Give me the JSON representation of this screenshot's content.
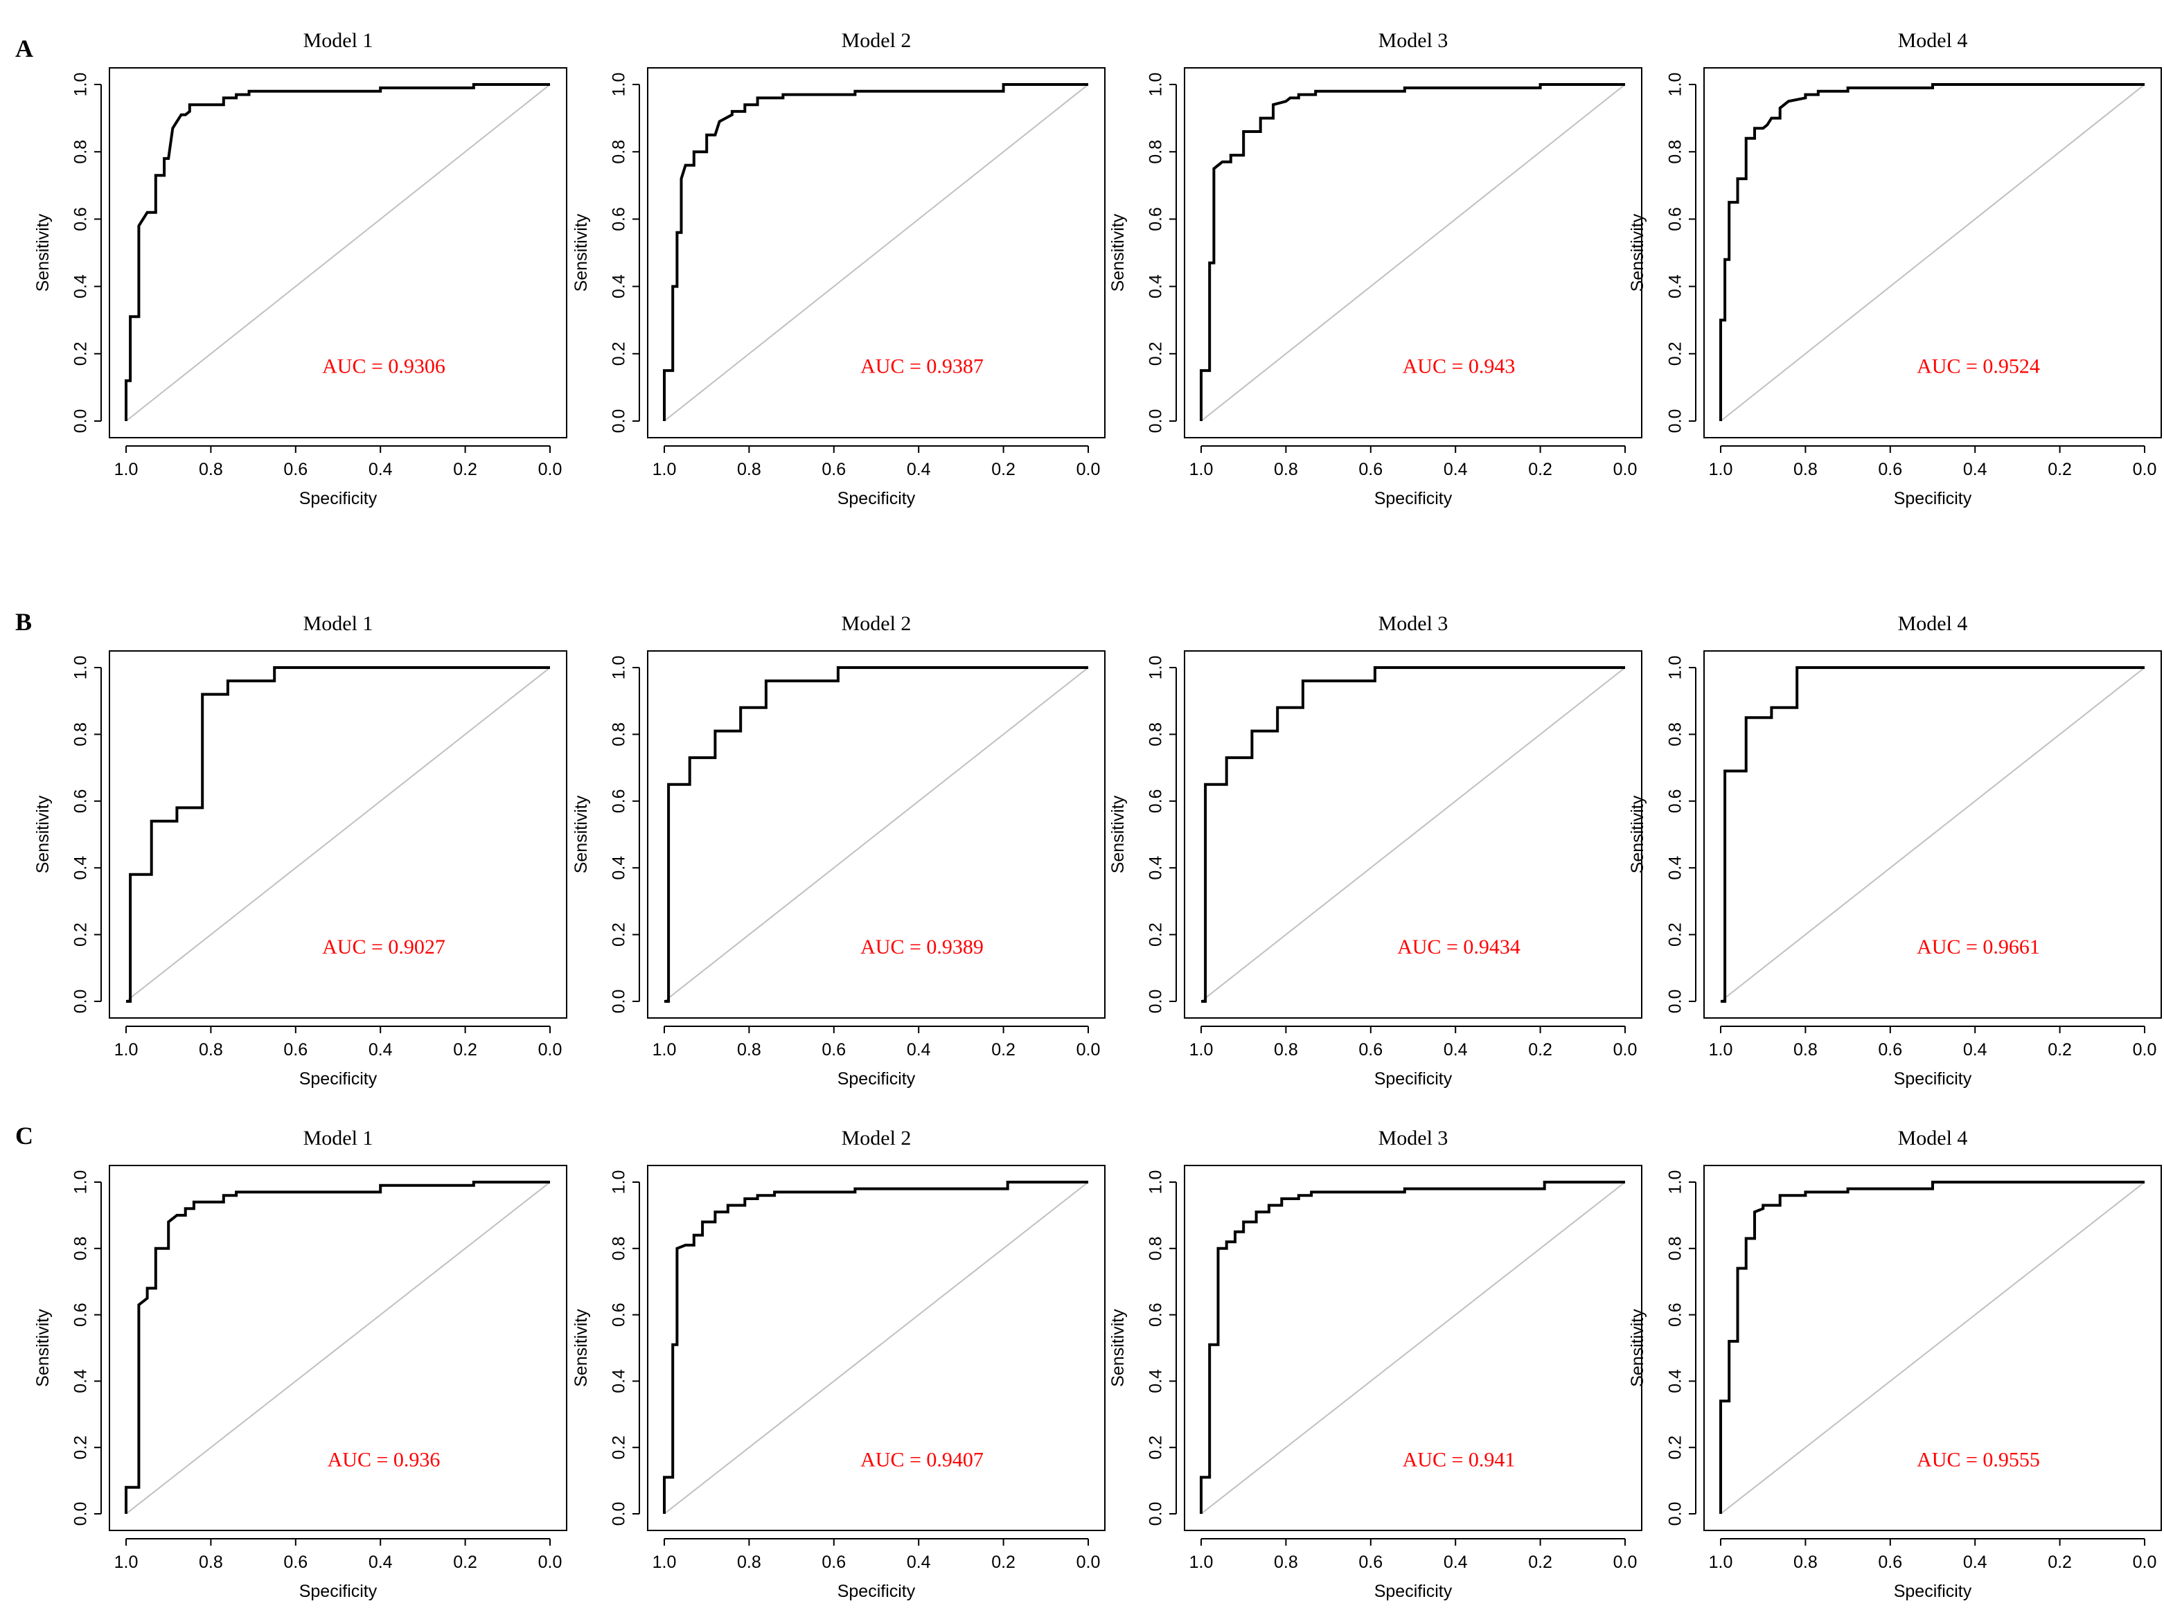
{
  "figure": {
    "row_labels": [
      "A",
      "B",
      "C"
    ]
  },
  "chart_data": [
    {
      "type": "line",
      "row": "A",
      "title": "Model 1",
      "xlabel": "Specificity",
      "ylabel": "Sensitivity",
      "annotation": "AUC = 0.9306",
      "auc_color": "#ff0000",
      "x_reversed": true,
      "xlim": [
        1.0,
        0.0
      ],
      "ylim": [
        0.0,
        1.0
      ],
      "xticks": [
        "1.0",
        "0.8",
        "0.6",
        "0.4",
        "0.2",
        "0.0"
      ],
      "yticks": [
        "0.0",
        "0.2",
        "0.4",
        "0.6",
        "0.8",
        "1.0"
      ],
      "series": [
        {
          "name": "ROC",
          "specificity": [
            1.0,
            1.0,
            0.99,
            0.99,
            0.97,
            0.97,
            0.96,
            0.95,
            0.93,
            0.93,
            0.91,
            0.91,
            0.9,
            0.89,
            0.88,
            0.87,
            0.86,
            0.85,
            0.85,
            0.77,
            0.77,
            0.74,
            0.74,
            0.71,
            0.71,
            0.4,
            0.4,
            0.18,
            0.18,
            0.0
          ],
          "sensitivity": [
            0.0,
            0.12,
            0.12,
            0.31,
            0.31,
            0.58,
            0.6,
            0.62,
            0.62,
            0.73,
            0.73,
            0.78,
            0.78,
            0.87,
            0.89,
            0.91,
            0.91,
            0.92,
            0.94,
            0.94,
            0.96,
            0.96,
            0.97,
            0.97,
            0.98,
            0.98,
            0.99,
            0.99,
            1.0,
            1.0
          ]
        }
      ]
    },
    {
      "type": "line",
      "row": "A",
      "title": "Model 2",
      "xlabel": "Specificity",
      "ylabel": "Sensitivity",
      "annotation": "AUC = 0.9387",
      "auc_color": "#ff0000",
      "x_reversed": true,
      "xlim": [
        1.0,
        0.0
      ],
      "ylim": [
        0.0,
        1.0
      ],
      "xticks": [
        "1.0",
        "0.8",
        "0.6",
        "0.4",
        "0.2",
        "0.0"
      ],
      "yticks": [
        "0.0",
        "0.2",
        "0.4",
        "0.6",
        "0.8",
        "1.0"
      ],
      "series": [
        {
          "name": "ROC",
          "specificity": [
            1.0,
            1.0,
            0.98,
            0.98,
            0.97,
            0.97,
            0.96,
            0.96,
            0.95,
            0.93,
            0.93,
            0.9,
            0.9,
            0.88,
            0.87,
            0.84,
            0.84,
            0.81,
            0.81,
            0.78,
            0.78,
            0.72,
            0.72,
            0.55,
            0.55,
            0.2,
            0.2,
            0.0
          ],
          "sensitivity": [
            0.0,
            0.15,
            0.15,
            0.4,
            0.4,
            0.56,
            0.56,
            0.72,
            0.76,
            0.76,
            0.8,
            0.8,
            0.85,
            0.85,
            0.89,
            0.91,
            0.92,
            0.92,
            0.94,
            0.94,
            0.96,
            0.96,
            0.97,
            0.97,
            0.98,
            0.98,
            1.0,
            1.0
          ]
        }
      ]
    },
    {
      "type": "line",
      "row": "A",
      "title": "Model 3",
      "xlabel": "Specificity",
      "ylabel": "Sensitivity",
      "annotation": "AUC = 0.943",
      "auc_color": "#ff0000",
      "x_reversed": true,
      "xlim": [
        1.0,
        0.0
      ],
      "ylim": [
        0.0,
        1.0
      ],
      "xticks": [
        "1.0",
        "0.8",
        "0.6",
        "0.4",
        "0.2",
        "0.0"
      ],
      "yticks": [
        "0.0",
        "0.2",
        "0.4",
        "0.6",
        "0.8",
        "1.0"
      ],
      "series": [
        {
          "name": "ROC",
          "specificity": [
            1.0,
            1.0,
            0.98,
            0.98,
            0.97,
            0.97,
            0.95,
            0.93,
            0.93,
            0.9,
            0.9,
            0.86,
            0.86,
            0.83,
            0.83,
            0.8,
            0.79,
            0.77,
            0.77,
            0.73,
            0.73,
            0.7,
            0.7,
            0.52,
            0.52,
            0.2,
            0.2,
            0.0
          ],
          "sensitivity": [
            0.0,
            0.15,
            0.15,
            0.47,
            0.47,
            0.75,
            0.77,
            0.77,
            0.79,
            0.79,
            0.86,
            0.86,
            0.9,
            0.9,
            0.94,
            0.95,
            0.96,
            0.96,
            0.97,
            0.97,
            0.98,
            0.98,
            0.98,
            0.98,
            0.99,
            0.99,
            1.0,
            1.0
          ]
        }
      ]
    },
    {
      "type": "line",
      "row": "A",
      "title": "Model 4",
      "xlabel": "Specificity",
      "ylabel": "Sensitivity",
      "annotation": "AUC = 0.9524",
      "auc_color": "#ff0000",
      "x_reversed": true,
      "xlim": [
        1.0,
        0.0
      ],
      "ylim": [
        0.0,
        1.0
      ],
      "xticks": [
        "1.0",
        "0.8",
        "0.6",
        "0.4",
        "0.2",
        "0.0"
      ],
      "yticks": [
        "0.0",
        "0.2",
        "0.4",
        "0.6",
        "0.8",
        "1.0"
      ],
      "series": [
        {
          "name": "ROC",
          "specificity": [
            1.0,
            1.0,
            0.99,
            0.99,
            0.98,
            0.98,
            0.96,
            0.96,
            0.94,
            0.94,
            0.92,
            0.92,
            0.9,
            0.89,
            0.88,
            0.86,
            0.86,
            0.84,
            0.8,
            0.8,
            0.77,
            0.77,
            0.7,
            0.7,
            0.5,
            0.5,
            0.0
          ],
          "sensitivity": [
            0.0,
            0.3,
            0.3,
            0.48,
            0.48,
            0.65,
            0.65,
            0.72,
            0.72,
            0.84,
            0.84,
            0.87,
            0.87,
            0.88,
            0.9,
            0.9,
            0.93,
            0.95,
            0.96,
            0.97,
            0.97,
            0.98,
            0.98,
            0.99,
            0.99,
            1.0,
            1.0
          ]
        }
      ]
    },
    {
      "type": "line",
      "row": "B",
      "title": "Model 1",
      "xlabel": "Specificity",
      "ylabel": "Sensitivity",
      "annotation": "AUC = 0.9027",
      "auc_color": "#ff0000",
      "x_reversed": true,
      "xlim": [
        1.0,
        0.0
      ],
      "ylim": [
        0.0,
        1.0
      ],
      "xticks": [
        "1.0",
        "0.8",
        "0.6",
        "0.4",
        "0.2",
        "0.0"
      ],
      "yticks": [
        "0.0",
        "0.2",
        "0.4",
        "0.6",
        "0.8",
        "1.0"
      ],
      "series": [
        {
          "name": "ROC",
          "specificity": [
            1.0,
            0.99,
            0.99,
            0.94,
            0.94,
            0.88,
            0.88,
            0.82,
            0.82,
            0.76,
            0.76,
            0.65,
            0.65,
            0.0
          ],
          "sensitivity": [
            0.0,
            0.0,
            0.38,
            0.38,
            0.54,
            0.54,
            0.58,
            0.58,
            0.92,
            0.92,
            0.96,
            0.96,
            1.0,
            1.0
          ]
        }
      ]
    },
    {
      "type": "line",
      "row": "B",
      "title": "Model 2",
      "xlabel": "Specificity",
      "ylabel": "Sensitivity",
      "annotation": "AUC  = 0.9389",
      "auc_color": "#ff0000",
      "x_reversed": true,
      "xlim": [
        1.0,
        0.0
      ],
      "ylim": [
        0.0,
        1.0
      ],
      "xticks": [
        "1.0",
        "0.8",
        "0.6",
        "0.4",
        "0.2",
        "0.0"
      ],
      "yticks": [
        "0.0",
        "0.2",
        "0.4",
        "0.6",
        "0.8",
        "1.0"
      ],
      "series": [
        {
          "name": "ROC",
          "specificity": [
            1.0,
            0.99,
            0.99,
            0.94,
            0.94,
            0.88,
            0.88,
            0.82,
            0.82,
            0.76,
            0.76,
            0.59,
            0.59,
            0.0
          ],
          "sensitivity": [
            0.0,
            0.0,
            0.65,
            0.65,
            0.73,
            0.73,
            0.81,
            0.81,
            0.88,
            0.88,
            0.96,
            0.96,
            1.0,
            1.0
          ]
        }
      ]
    },
    {
      "type": "line",
      "row": "B",
      "title": "Model 3",
      "xlabel": "Specificity",
      "ylabel": "Sensitivity",
      "annotation": "AUC = 0.9434",
      "auc_color": "#ff0000",
      "x_reversed": true,
      "xlim": [
        1.0,
        0.0
      ],
      "ylim": [
        0.0,
        1.0
      ],
      "xticks": [
        "1.0",
        "0.8",
        "0.6",
        "0.4",
        "0.2",
        "0.0"
      ],
      "yticks": [
        "0.0",
        "0.2",
        "0.4",
        "0.6",
        "0.8",
        "1.0"
      ],
      "series": [
        {
          "name": "ROC",
          "specificity": [
            1.0,
            0.99,
            0.99,
            0.94,
            0.94,
            0.88,
            0.88,
            0.82,
            0.82,
            0.76,
            0.76,
            0.59,
            0.59,
            0.0
          ],
          "sensitivity": [
            0.0,
            0.0,
            0.65,
            0.65,
            0.73,
            0.73,
            0.81,
            0.81,
            0.88,
            0.88,
            0.96,
            0.96,
            1.0,
            1.0
          ]
        }
      ]
    },
    {
      "type": "line",
      "row": "B",
      "title": "Model 4",
      "xlabel": "Specificity",
      "ylabel": "Sensitivity",
      "annotation": "AUC = 0.9661",
      "auc_color": "#ff0000",
      "x_reversed": true,
      "xlim": [
        1.0,
        0.0
      ],
      "ylim": [
        0.0,
        1.0
      ],
      "xticks": [
        "1.0",
        "0.8",
        "0.6",
        "0.4",
        "0.2",
        "0.0"
      ],
      "yticks": [
        "0.0",
        "0.2",
        "0.4",
        "0.6",
        "0.8",
        "1.0"
      ],
      "series": [
        {
          "name": "ROC",
          "specificity": [
            1.0,
            0.99,
            0.99,
            0.94,
            0.94,
            0.88,
            0.88,
            0.82,
            0.82,
            0.0
          ],
          "sensitivity": [
            0.0,
            0.0,
            0.69,
            0.69,
            0.85,
            0.85,
            0.88,
            0.88,
            1.0,
            1.0
          ]
        }
      ]
    },
    {
      "type": "line",
      "row": "C",
      "title": "Model 1",
      "xlabel": "Specificity",
      "ylabel": "Sensitivity",
      "annotation": "AUC = 0.936",
      "auc_color": "#ff0000",
      "x_reversed": true,
      "xlim": [
        1.0,
        0.0
      ],
      "ylim": [
        0.0,
        1.0
      ],
      "xticks": [
        "1.0",
        "0.8",
        "0.6",
        "0.4",
        "0.2",
        "0.0"
      ],
      "yticks": [
        "0.0",
        "0.2",
        "0.4",
        "0.6",
        "0.8",
        "1.0"
      ],
      "series": [
        {
          "name": "ROC",
          "specificity": [
            1.0,
            1.0,
            0.97,
            0.97,
            0.95,
            0.95,
            0.93,
            0.93,
            0.9,
            0.9,
            0.88,
            0.86,
            0.86,
            0.84,
            0.84,
            0.77,
            0.77,
            0.74,
            0.74,
            0.4,
            0.4,
            0.18,
            0.18,
            0.0
          ],
          "sensitivity": [
            0.0,
            0.08,
            0.08,
            0.63,
            0.65,
            0.68,
            0.68,
            0.8,
            0.8,
            0.88,
            0.9,
            0.9,
            0.92,
            0.92,
            0.94,
            0.94,
            0.96,
            0.96,
            0.97,
            0.97,
            0.99,
            0.99,
            1.0,
            1.0
          ]
        }
      ]
    },
    {
      "type": "line",
      "row": "C",
      "title": "Model 2",
      "xlabel": "Specificity",
      "ylabel": "Sensitivity",
      "annotation": "AUC =  0.9407",
      "auc_color": "#ff0000",
      "x_reversed": true,
      "xlim": [
        1.0,
        0.0
      ],
      "ylim": [
        0.0,
        1.0
      ],
      "xticks": [
        "1.0",
        "0.8",
        "0.6",
        "0.4",
        "0.2",
        "0.0"
      ],
      "yticks": [
        "0.0",
        "0.2",
        "0.4",
        "0.6",
        "0.8",
        "1.0"
      ],
      "series": [
        {
          "name": "ROC",
          "specificity": [
            1.0,
            1.0,
            0.98,
            0.98,
            0.97,
            0.97,
            0.95,
            0.93,
            0.93,
            0.91,
            0.91,
            0.88,
            0.88,
            0.85,
            0.85,
            0.81,
            0.81,
            0.78,
            0.78,
            0.74,
            0.74,
            0.55,
            0.55,
            0.19,
            0.19,
            0.0
          ],
          "sensitivity": [
            0.0,
            0.11,
            0.11,
            0.51,
            0.51,
            0.8,
            0.81,
            0.81,
            0.84,
            0.84,
            0.88,
            0.88,
            0.91,
            0.91,
            0.93,
            0.93,
            0.95,
            0.95,
            0.96,
            0.96,
            0.97,
            0.97,
            0.98,
            0.98,
            1.0,
            1.0
          ]
        }
      ]
    },
    {
      "type": "line",
      "row": "C",
      "title": "Model 3",
      "xlabel": "Specificity",
      "ylabel": "Sensitivity",
      "annotation": "AUC = 0.941",
      "auc_color": "#ff0000",
      "x_reversed": true,
      "xlim": [
        1.0,
        0.0
      ],
      "ylim": [
        0.0,
        1.0
      ],
      "xticks": [
        "1.0",
        "0.8",
        "0.6",
        "0.4",
        "0.2",
        "0.0"
      ],
      "yticks": [
        "0.0",
        "0.2",
        "0.4",
        "0.6",
        "0.8",
        "1.0"
      ],
      "series": [
        {
          "name": "ROC",
          "specificity": [
            1.0,
            1.0,
            0.98,
            0.98,
            0.96,
            0.96,
            0.94,
            0.94,
            0.92,
            0.92,
            0.9,
            0.9,
            0.87,
            0.87,
            0.84,
            0.84,
            0.81,
            0.81,
            0.77,
            0.77,
            0.74,
            0.74,
            0.52,
            0.52,
            0.19,
            0.19,
            0.0
          ],
          "sensitivity": [
            0.0,
            0.11,
            0.11,
            0.51,
            0.51,
            0.8,
            0.8,
            0.82,
            0.82,
            0.85,
            0.85,
            0.88,
            0.88,
            0.91,
            0.91,
            0.93,
            0.93,
            0.95,
            0.95,
            0.96,
            0.96,
            0.97,
            0.97,
            0.98,
            0.98,
            1.0,
            1.0
          ]
        }
      ]
    },
    {
      "type": "line",
      "row": "C",
      "title": "Model 4",
      "xlabel": "Specificity",
      "ylabel": "Sensitivity",
      "annotation": "AUC = 0.9555",
      "auc_color": "#ff0000",
      "x_reversed": true,
      "xlim": [
        1.0,
        0.0
      ],
      "ylim": [
        0.0,
        1.0
      ],
      "xticks": [
        "1.0",
        "0.8",
        "0.6",
        "0.4",
        "0.2",
        "0.0"
      ],
      "yticks": [
        "0.0",
        "0.2",
        "0.4",
        "0.6",
        "0.8",
        "1.0"
      ],
      "series": [
        {
          "name": "ROC",
          "specificity": [
            1.0,
            1.0,
            0.98,
            0.98,
            0.96,
            0.96,
            0.94,
            0.94,
            0.92,
            0.92,
            0.9,
            0.9,
            0.86,
            0.86,
            0.8,
            0.8,
            0.7,
            0.7,
            0.5,
            0.5,
            0.0
          ],
          "sensitivity": [
            0.0,
            0.34,
            0.34,
            0.52,
            0.52,
            0.74,
            0.74,
            0.83,
            0.83,
            0.91,
            0.92,
            0.93,
            0.93,
            0.96,
            0.96,
            0.97,
            0.97,
            0.98,
            0.98,
            1.0,
            1.0
          ]
        }
      ]
    }
  ]
}
